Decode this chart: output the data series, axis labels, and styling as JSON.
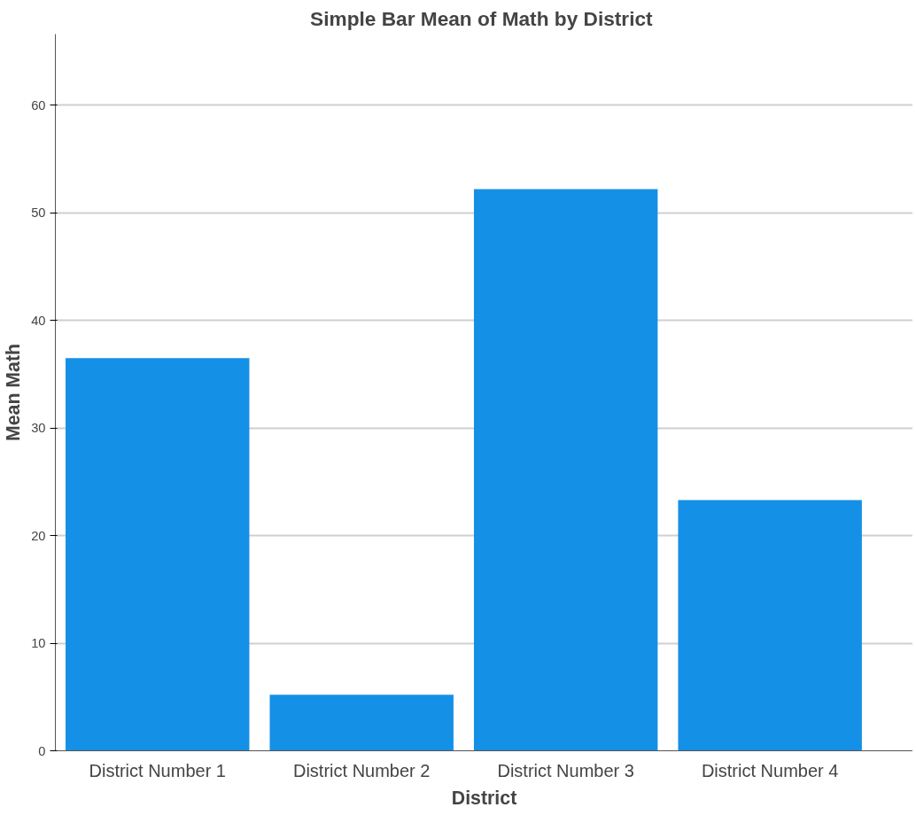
{
  "chart_data": {
    "type": "bar",
    "title": "Simple Bar Mean of Math  by District",
    "xlabel": "District",
    "ylabel": "Mean Math",
    "categories": [
      "District Number 1",
      "District Number 2",
      "District Number 3",
      "District Number 4"
    ],
    "values": [
      36.5,
      5.2,
      52.2,
      23.3
    ],
    "color": "#1490e6",
    "ylim": [
      0,
      66.6
    ],
    "yticks": [
      0,
      10,
      20,
      30,
      40,
      50,
      60
    ],
    "grid": "y"
  }
}
